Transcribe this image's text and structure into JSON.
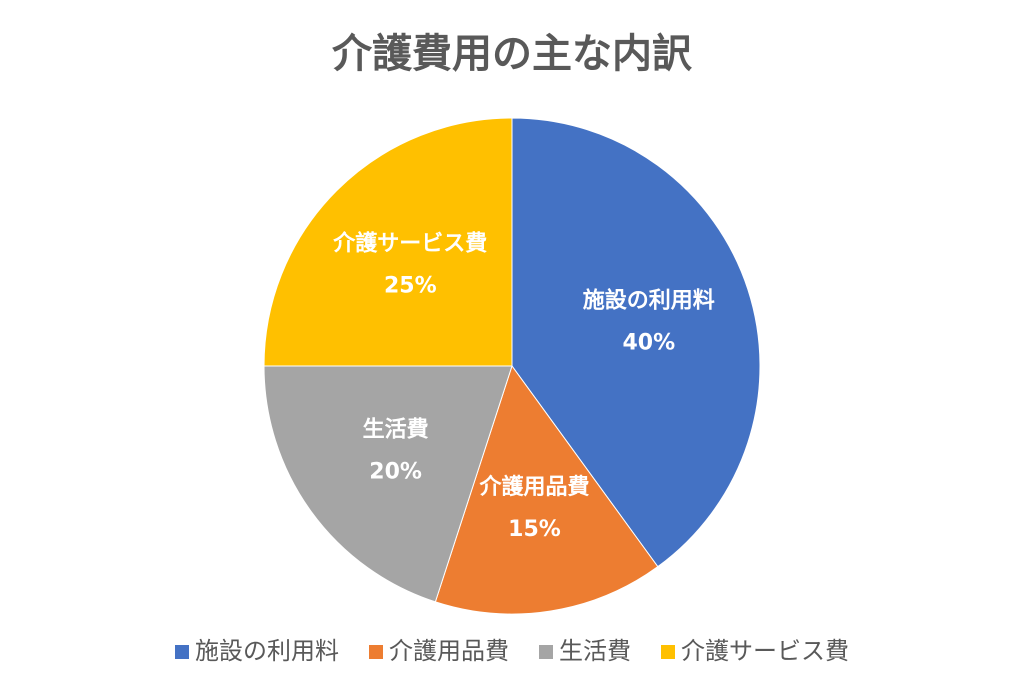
{
  "chart_data": {
    "type": "pie",
    "title": "介護費用の主な内訳",
    "categories": [
      "施設の利用料",
      "介護用品費",
      "生活費",
      "介護サービス費"
    ],
    "values": [
      40,
      15,
      20,
      25
    ],
    "value_labels": [
      "40%",
      "15%",
      "20%",
      "25%"
    ],
    "colors": [
      "#4472c4",
      "#ed7d31",
      "#a5a5a5",
      "#ffc000"
    ],
    "legend": "bottom"
  }
}
